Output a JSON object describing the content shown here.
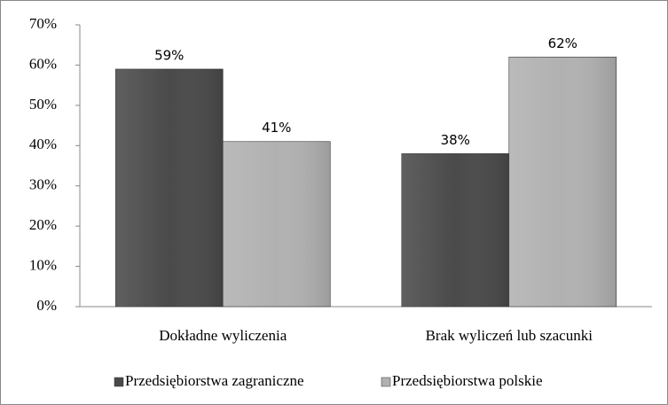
{
  "chart_data": {
    "type": "bar",
    "categories": [
      "Dokładne wyliczenia",
      "Brak wyliczeń lub szacunki"
    ],
    "series": [
      {
        "name": "Przedsiębiorstwa zagraniczne",
        "color": "#4a4a4a",
        "values": [
          59,
          38
        ],
        "value_labels": [
          "59%",
          "38%"
        ]
      },
      {
        "name": "Przedsiębiorstwa polskie",
        "color": "#b1b1b1",
        "values": [
          41,
          62
        ],
        "value_labels": [
          "41%",
          "62%"
        ]
      }
    ],
    "ylim": [
      0,
      70
    ],
    "yticks": [
      {
        "value": 0,
        "label": "0%"
      },
      {
        "value": 10,
        "label": "10%"
      },
      {
        "value": 20,
        "label": "20%"
      },
      {
        "value": 30,
        "label": "30%"
      },
      {
        "value": 40,
        "label": "40%"
      },
      {
        "value": 50,
        "label": "50%"
      },
      {
        "value": 60,
        "label": "60%"
      },
      {
        "value": 70,
        "label": "70%"
      }
    ],
    "grid": false,
    "legend": "bottom"
  }
}
